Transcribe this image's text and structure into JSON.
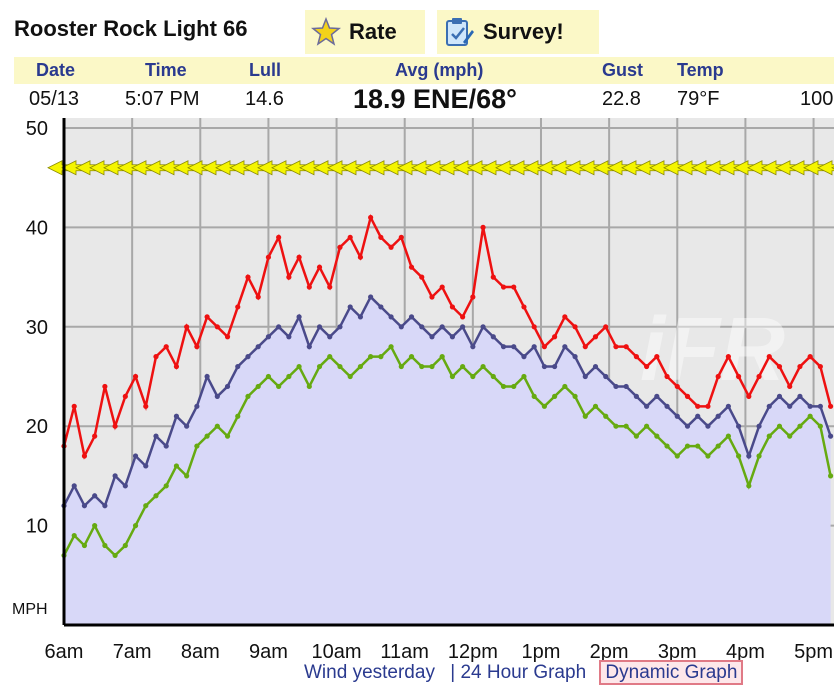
{
  "station": {
    "title": "Rooster Rock Light 66"
  },
  "toolbar": {
    "rate_label": "Rate",
    "survey_label": "Survey!"
  },
  "current": {
    "headers": {
      "date": "Date",
      "time": "Time",
      "lull": "Lull",
      "avg": "Avg (mph)",
      "gust": "Gust",
      "temp": "Temp"
    },
    "values": {
      "date": "05/13",
      "time": "5:07 PM",
      "lull": "14.6",
      "avg": "18.9 ENE/68°",
      "gust": "22.8",
      "temp": "79°F",
      "extra": "100"
    }
  },
  "colors": {
    "gust": "#ee1111",
    "avg": "#4a4a8a",
    "lull": "#66aa11",
    "fill": "#d8d8f8",
    "arrows": "#f5f500",
    "header_bg": "#fbf8c7"
  },
  "chart_data": {
    "type": "line",
    "ylabel": "MPH",
    "yticks": [
      10,
      20,
      30,
      40,
      50
    ],
    "ylim": [
      0,
      50
    ],
    "xlim": [
      6,
      17.3
    ],
    "xticks": [
      {
        "label": "6am",
        "value": 6
      },
      {
        "label": "7am",
        "value": 7
      },
      {
        "label": "8am",
        "value": 8
      },
      {
        "label": "9am",
        "value": 9
      },
      {
        "label": "10am",
        "value": 10
      },
      {
        "label": "11am",
        "value": 11
      },
      {
        "label": "12pm",
        "value": 12
      },
      {
        "label": "1pm",
        "value": 13
      },
      {
        "label": "2pm",
        "value": 14
      },
      {
        "label": "3pm",
        "value": 15
      },
      {
        "label": "4pm",
        "value": 16
      },
      {
        "label": "5pm",
        "value": 17
      }
    ],
    "grid": true,
    "series": [
      {
        "key": "gust",
        "x": [
          6.0,
          6.15,
          6.3,
          6.45,
          6.6,
          6.75,
          6.9,
          7.05,
          7.2,
          7.35,
          7.5,
          7.65,
          7.8,
          7.95,
          8.1,
          8.25,
          8.4,
          8.55,
          8.7,
          8.85,
          9.0,
          9.15,
          9.3,
          9.45,
          9.6,
          9.75,
          9.9,
          10.05,
          10.2,
          10.35,
          10.5,
          10.65,
          10.8,
          10.95,
          11.1,
          11.25,
          11.4,
          11.55,
          11.7,
          11.85,
          12.0,
          12.15,
          12.3,
          12.45,
          12.6,
          12.75,
          12.9,
          13.05,
          13.2,
          13.35,
          13.5,
          13.65,
          13.8,
          13.95,
          14.1,
          14.25,
          14.4,
          14.55,
          14.7,
          14.85,
          15.0,
          15.15,
          15.3,
          15.45,
          15.6,
          15.75,
          15.9,
          16.05,
          16.2,
          16.35,
          16.5,
          16.65,
          16.8,
          16.95,
          17.1,
          17.25
        ],
        "values": [
          18,
          22,
          17,
          19,
          24,
          20,
          23,
          25,
          22,
          27,
          28,
          26,
          30,
          28,
          31,
          30,
          29,
          32,
          35,
          33,
          37,
          39,
          35,
          37,
          34,
          36,
          34,
          38,
          39,
          37,
          41,
          39,
          38,
          39,
          36,
          35,
          33,
          34,
          32,
          31,
          33,
          40,
          35,
          34,
          34,
          32,
          30,
          28,
          29,
          31,
          30,
          28,
          29,
          30,
          28,
          28,
          27,
          26,
          27,
          25,
          24,
          23,
          22,
          22,
          25,
          27,
          25,
          23,
          25,
          27,
          26,
          24,
          26,
          27,
          26,
          22
        ]
      },
      {
        "key": "avg",
        "x": [
          6.0,
          6.15,
          6.3,
          6.45,
          6.6,
          6.75,
          6.9,
          7.05,
          7.2,
          7.35,
          7.5,
          7.65,
          7.8,
          7.95,
          8.1,
          8.25,
          8.4,
          8.55,
          8.7,
          8.85,
          9.0,
          9.15,
          9.3,
          9.45,
          9.6,
          9.75,
          9.9,
          10.05,
          10.2,
          10.35,
          10.5,
          10.65,
          10.8,
          10.95,
          11.1,
          11.25,
          11.4,
          11.55,
          11.7,
          11.85,
          12.0,
          12.15,
          12.3,
          12.45,
          12.6,
          12.75,
          12.9,
          13.05,
          13.2,
          13.35,
          13.5,
          13.65,
          13.8,
          13.95,
          14.1,
          14.25,
          14.4,
          14.55,
          14.7,
          14.85,
          15.0,
          15.15,
          15.3,
          15.45,
          15.6,
          15.75,
          15.9,
          16.05,
          16.2,
          16.35,
          16.5,
          16.65,
          16.8,
          16.95,
          17.1,
          17.25
        ],
        "values": [
          12,
          14,
          12,
          13,
          12,
          15,
          14,
          17,
          16,
          19,
          18,
          21,
          20,
          22,
          25,
          23,
          24,
          26,
          27,
          28,
          29,
          30,
          29,
          31,
          28,
          30,
          29,
          30,
          32,
          31,
          33,
          32,
          31,
          30,
          31,
          30,
          29,
          30,
          29,
          30,
          28,
          30,
          29,
          28,
          28,
          27,
          28,
          26,
          26,
          28,
          27,
          25,
          26,
          25,
          24,
          24,
          23,
          22,
          23,
          22,
          21,
          20,
          21,
          20,
          21,
          22,
          20,
          17,
          20,
          22,
          23,
          22,
          23,
          22,
          22,
          19
        ]
      },
      {
        "key": "lull",
        "x": [
          6.0,
          6.15,
          6.3,
          6.45,
          6.6,
          6.75,
          6.9,
          7.05,
          7.2,
          7.35,
          7.5,
          7.65,
          7.8,
          7.95,
          8.1,
          8.25,
          8.4,
          8.55,
          8.7,
          8.85,
          9.0,
          9.15,
          9.3,
          9.45,
          9.6,
          9.75,
          9.9,
          10.05,
          10.2,
          10.35,
          10.5,
          10.65,
          10.8,
          10.95,
          11.1,
          11.25,
          11.4,
          11.55,
          11.7,
          11.85,
          12.0,
          12.15,
          12.3,
          12.45,
          12.6,
          12.75,
          12.9,
          13.05,
          13.2,
          13.35,
          13.5,
          13.65,
          13.8,
          13.95,
          14.1,
          14.25,
          14.4,
          14.55,
          14.7,
          14.85,
          15.0,
          15.15,
          15.3,
          15.45,
          15.6,
          15.75,
          15.9,
          16.05,
          16.2,
          16.35,
          16.5,
          16.65,
          16.8,
          16.95,
          17.1,
          17.25
        ],
        "values": [
          7,
          9,
          8,
          10,
          8,
          7,
          8,
          10,
          12,
          13,
          14,
          16,
          15,
          18,
          19,
          20,
          19,
          21,
          23,
          24,
          25,
          24,
          25,
          26,
          24,
          26,
          27,
          26,
          25,
          26,
          27,
          27,
          28,
          26,
          27,
          26,
          26,
          27,
          25,
          26,
          25,
          26,
          25,
          24,
          24,
          25,
          23,
          22,
          23,
          24,
          23,
          21,
          22,
          21,
          20,
          20,
          19,
          20,
          19,
          18,
          17,
          18,
          18,
          17,
          18,
          19,
          17,
          14,
          17,
          19,
          20,
          19,
          20,
          21,
          20,
          15
        ]
      }
    ]
  },
  "footer": {
    "wind_yesterday": "Wind yesterday",
    "separator": "|",
    "hour24": "24 Hour Graph",
    "dynamic": "Dynamic Graph"
  }
}
